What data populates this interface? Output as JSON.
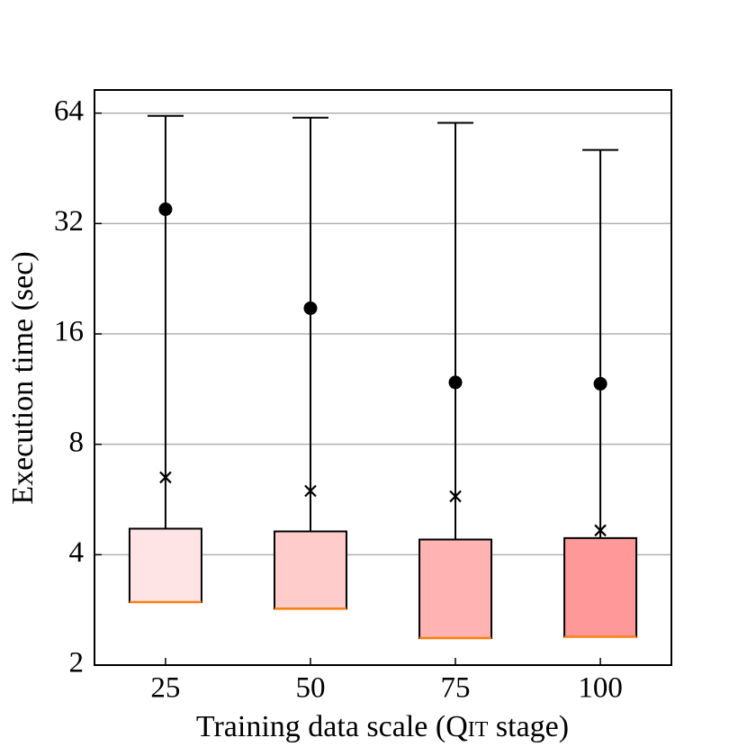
{
  "chart_data": {
    "type": "box",
    "ylabel": "Execution time (sec)",
    "xlabel": [
      "Training data scale (",
      "Qit",
      " stage)"
    ],
    "categories": [
      "25",
      "50",
      "75",
      "100"
    ],
    "log_scale_y": 2,
    "ylim": [
      2,
      74
    ],
    "yticks": [
      2,
      4,
      8,
      16,
      32,
      64
    ],
    "grid": true,
    "median_color": "#ff7f0e",
    "boxes": [
      {
        "q1": 2.97,
        "median": 2.97,
        "q3": 4.71,
        "whisker_high": 62.9,
        "mean": 6.5,
        "point": 35.0,
        "color": "#ffe4e6"
      },
      {
        "q1": 2.85,
        "median": 2.85,
        "q3": 4.63,
        "whisker_high": 62.2,
        "mean": 5.97,
        "point": 18.8,
        "color": "#ffcccc"
      },
      {
        "q1": 2.37,
        "median": 2.37,
        "q3": 4.4,
        "whisker_high": 60.2,
        "mean": 5.77,
        "point": 11.8,
        "color": "#ffb3b3"
      },
      {
        "q1": 2.39,
        "median": 2.39,
        "q3": 4.44,
        "whisker_high": 50.8,
        "mean": 4.66,
        "point": 11.7,
        "color": "#ff9999"
      }
    ]
  }
}
